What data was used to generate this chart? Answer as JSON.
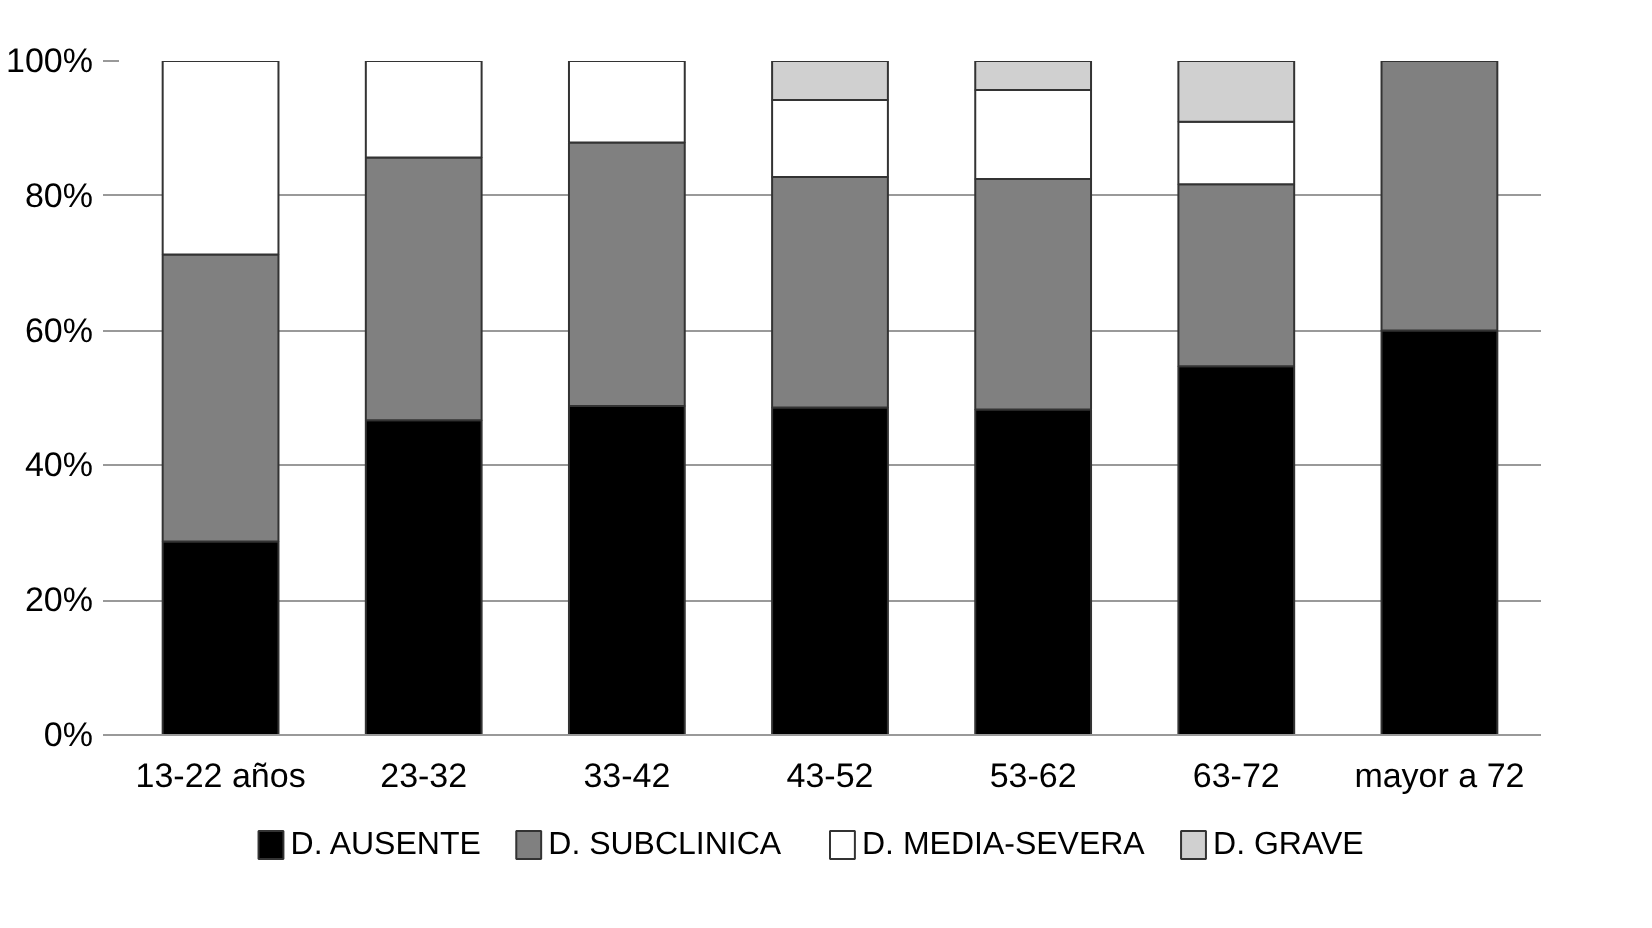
{
  "chart_data": {
    "type": "bar",
    "stacked": true,
    "categories": [
      "13-22 años",
      "23-32",
      "33-42",
      "43-52",
      "53-62",
      "63-72",
      "mayor a 72"
    ],
    "series": [
      {
        "name": "D. AUSENTE",
        "color": "#000000",
        "values": [
          28.7,
          46.7,
          48.8,
          48.6,
          48.3,
          54.7,
          60.0
        ]
      },
      {
        "name": "D. SUBCLINICA",
        "color": "#808080",
        "values": [
          42.6,
          39.0,
          39.1,
          34.2,
          34.2,
          27.0,
          40.0
        ]
      },
      {
        "name": "D. MEDIA-SEVERA",
        "color": "#ffffff",
        "values": [
          28.7,
          14.3,
          12.1,
          11.4,
          13.2,
          9.3,
          0
        ]
      },
      {
        "name": "D. GRAVE",
        "color": "#d0d0d0",
        "values": [
          0,
          0,
          0,
          5.8,
          4.3,
          9.0,
          0
        ]
      }
    ],
    "ylim": [
      0,
      100
    ],
    "yticks": [
      {
        "value": 0,
        "label": "0%"
      },
      {
        "value": 20,
        "label": "20%"
      },
      {
        "value": 40,
        "label": "40%"
      },
      {
        "value": 60,
        "label": "60%"
      },
      {
        "value": 80,
        "label": "80%"
      },
      {
        "value": 100,
        "label": "100%"
      }
    ],
    "grid": "y",
    "legend": "bottom"
  }
}
